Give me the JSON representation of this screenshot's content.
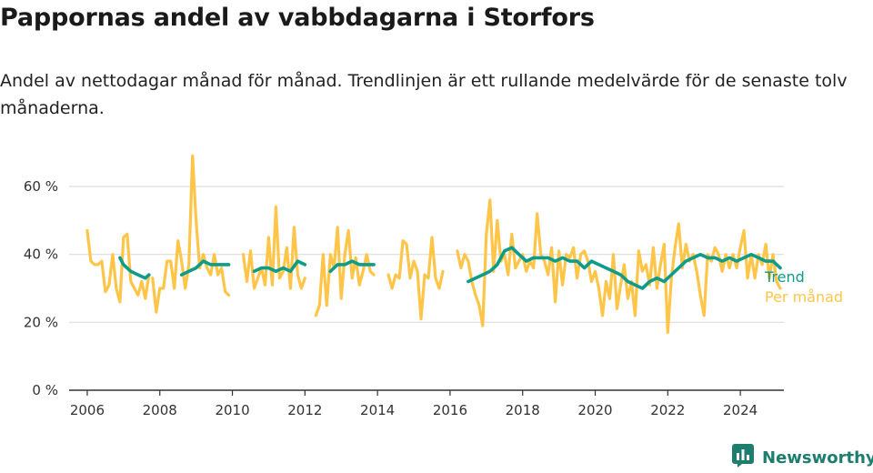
{
  "title": "Pappornas andel av vabbdagarna i Storfors",
  "subtitle": "Andel av nettodagar månad för månad. Trendlinjen är ett rullande medelvärde för de senaste tolv månaderna.",
  "brand": {
    "name": "Newsworthy",
    "icon": "bar-chart-speech-bubble-icon"
  },
  "colors": {
    "per_month": "#ffc549",
    "trend": "#0d9b8a",
    "grid": "#dddddd",
    "axis": "#333333"
  },
  "chart_data": {
    "type": "line",
    "xlim": [
      2005.5,
      2025.2
    ],
    "ylim": [
      0,
      60
    ],
    "x_ticks": [
      2006,
      2008,
      2010,
      2012,
      2014,
      2016,
      2018,
      2020,
      2022,
      2024
    ],
    "y_ticks": [
      0,
      20,
      40,
      60
    ],
    "y_tick_labels": [
      "0 %",
      "20 %",
      "40 %",
      "60 %"
    ],
    "grid": "horizontal",
    "legend": "right, at line ends",
    "series": [
      {
        "name": "Per månad",
        "segments": [
          [
            [
              2006.0,
              47
            ],
            [
              2006.1,
              38
            ],
            [
              2006.2,
              37
            ],
            [
              2006.3,
              37
            ],
            [
              2006.4,
              38
            ],
            [
              2006.5,
              29
            ],
            [
              2006.6,
              31
            ],
            [
              2006.7,
              40
            ],
            [
              2006.8,
              30
            ],
            [
              2006.9,
              26
            ],
            [
              2007.0,
              45
            ],
            [
              2007.1,
              46
            ],
            [
              2007.2,
              32
            ],
            [
              2007.3,
              30
            ],
            [
              2007.4,
              28
            ],
            [
              2007.5,
              32
            ],
            [
              2007.6,
              27
            ],
            [
              2007.7,
              34
            ]
          ],
          [
            [
              2007.8,
              33
            ],
            [
              2007.9,
              23
            ],
            [
              2008.0,
              30
            ],
            [
              2008.1,
              30
            ],
            [
              2008.2,
              38
            ],
            [
              2008.3,
              38
            ],
            [
              2008.4,
              30
            ],
            [
              2008.5,
              44
            ],
            [
              2008.6,
              38
            ],
            [
              2008.7,
              30
            ],
            [
              2008.8,
              37
            ],
            [
              2008.9,
              69
            ],
            [
              2009.0,
              50
            ],
            [
              2009.1,
              36
            ],
            [
              2009.2,
              40
            ],
            [
              2009.3,
              36
            ],
            [
              2009.4,
              34
            ],
            [
              2009.5,
              40
            ],
            [
              2009.6,
              34
            ],
            [
              2009.7,
              36
            ],
            [
              2009.8,
              29
            ],
            [
              2009.9,
              28
            ]
          ],
          [
            [
              2010.3,
              40
            ],
            [
              2010.4,
              32
            ],
            [
              2010.5,
              41
            ],
            [
              2010.6,
              30
            ],
            [
              2010.7,
              33
            ],
            [
              2010.8,
              36
            ],
            [
              2010.9,
              31
            ],
            [
              2011.0,
              45
            ],
            [
              2011.1,
              31
            ],
            [
              2011.2,
              54
            ],
            [
              2011.3,
              33
            ],
            [
              2011.4,
              35
            ],
            [
              2011.5,
              42
            ],
            [
              2011.6,
              30
            ],
            [
              2011.7,
              48
            ],
            [
              2011.8,
              34
            ],
            [
              2011.9,
              30
            ],
            [
              2012.0,
              33
            ]
          ],
          [
            [
              2012.3,
              22
            ],
            [
              2012.4,
              25
            ],
            [
              2012.5,
              40
            ],
            [
              2012.6,
              25
            ],
            [
              2012.7,
              40
            ],
            [
              2012.8,
              36
            ],
            [
              2012.9,
              48
            ],
            [
              2013.0,
              27
            ],
            [
              2013.1,
              40
            ],
            [
              2013.2,
              47
            ],
            [
              2013.3,
              33
            ],
            [
              2013.4,
              39
            ],
            [
              2013.5,
              31
            ],
            [
              2013.6,
              35
            ],
            [
              2013.7,
              40
            ],
            [
              2013.8,
              35
            ],
            [
              2013.9,
              34
            ]
          ],
          [
            [
              2014.3,
              34
            ],
            [
              2014.4,
              30
            ],
            [
              2014.5,
              34
            ],
            [
              2014.6,
              33
            ],
            [
              2014.7,
              44
            ],
            [
              2014.8,
              43
            ],
            [
              2014.9,
              33
            ],
            [
              2015.0,
              38
            ],
            [
              2015.1,
              35
            ],
            [
              2015.2,
              21
            ],
            [
              2015.3,
              34
            ],
            [
              2015.4,
              33
            ],
            [
              2015.5,
              45
            ],
            [
              2015.6,
              33
            ],
            [
              2015.7,
              30
            ],
            [
              2015.8,
              35
            ]
          ],
          [
            [
              2016.2,
              41
            ],
            [
              2016.3,
              36
            ],
            [
              2016.4,
              40
            ],
            [
              2016.5,
              38
            ],
            [
              2016.6,
              32
            ],
            [
              2016.7,
              28
            ],
            [
              2016.8,
              25
            ],
            [
              2016.9,
              19
            ],
            [
              2017.0,
              46
            ],
            [
              2017.1,
              56
            ],
            [
              2017.2,
              35
            ],
            [
              2017.3,
              50
            ],
            [
              2017.4,
              38
            ],
            [
              2017.5,
              40
            ],
            [
              2017.6,
              34
            ],
            [
              2017.7,
              46
            ],
            [
              2017.8,
              36
            ],
            [
              2017.9,
              38
            ],
            [
              2018.0,
              40
            ],
            [
              2018.1,
              35
            ],
            [
              2018.2,
              38
            ],
            [
              2018.3,
              36
            ],
            [
              2018.4,
              52
            ],
            [
              2018.5,
              40
            ],
            [
              2018.6,
              38
            ],
            [
              2018.7,
              34
            ],
            [
              2018.8,
              42
            ],
            [
              2018.9,
              26
            ],
            [
              2019.0,
              41
            ],
            [
              2019.1,
              31
            ],
            [
              2019.2,
              40
            ],
            [
              2019.3,
              39
            ],
            [
              2019.4,
              42
            ],
            [
              2019.5,
              33
            ],
            [
              2019.6,
              40
            ],
            [
              2019.7,
              41
            ],
            [
              2019.8,
              38
            ],
            [
              2019.9,
              32
            ],
            [
              2020.0,
              35
            ],
            [
              2020.1,
              30
            ],
            [
              2020.2,
              22
            ],
            [
              2020.3,
              32
            ],
            [
              2020.4,
              27
            ],
            [
              2020.5,
              40
            ],
            [
              2020.6,
              24
            ],
            [
              2020.7,
              31
            ],
            [
              2020.8,
              37
            ],
            [
              2020.9,
              27
            ],
            [
              2021.0,
              32
            ],
            [
              2021.1,
              22
            ],
            [
              2021.2,
              41
            ],
            [
              2021.3,
              35
            ],
            [
              2021.4,
              37
            ],
            [
              2021.5,
              31
            ],
            [
              2021.6,
              42
            ],
            [
              2021.7,
              30
            ],
            [
              2021.8,
              37
            ],
            [
              2021.9,
              43
            ],
            [
              2022.0,
              17
            ],
            [
              2022.1,
              33
            ],
            [
              2022.2,
              42
            ],
            [
              2022.3,
              49
            ],
            [
              2022.4,
              36
            ],
            [
              2022.5,
              43
            ],
            [
              2022.6,
              38
            ],
            [
              2022.7,
              40
            ],
            [
              2022.8,
              35
            ],
            [
              2022.9,
              28
            ],
            [
              2023.0,
              22
            ],
            [
              2023.1,
              40
            ],
            [
              2023.2,
              38
            ],
            [
              2023.3,
              42
            ],
            [
              2023.4,
              40
            ],
            [
              2023.5,
              35
            ],
            [
              2023.6,
              40
            ],
            [
              2023.7,
              36
            ],
            [
              2023.8,
              40
            ],
            [
              2023.9,
              36
            ],
            [
              2024.0,
              42
            ],
            [
              2024.1,
              47
            ],
            [
              2024.2,
              33
            ],
            [
              2024.3,
              40
            ],
            [
              2024.4,
              33
            ],
            [
              2024.5,
              40
            ],
            [
              2024.6,
              37
            ],
            [
              2024.7,
              43
            ],
            [
              2024.8,
              33
            ],
            [
              2024.9,
              40
            ],
            [
              2025.0,
              32
            ],
            [
              2025.1,
              30
            ]
          ]
        ]
      },
      {
        "name": "Trend",
        "segments": [
          [
            [
              2006.9,
              39
            ],
            [
              2007.0,
              37
            ],
            [
              2007.2,
              35
            ],
            [
              2007.4,
              34
            ],
            [
              2007.6,
              33
            ],
            [
              2007.7,
              34
            ]
          ],
          [
            [
              2008.6,
              34
            ],
            [
              2008.8,
              35
            ],
            [
              2009.0,
              36
            ],
            [
              2009.2,
              38
            ],
            [
              2009.4,
              37
            ],
            [
              2009.6,
              37
            ],
            [
              2009.8,
              37
            ],
            [
              2009.9,
              37
            ]
          ],
          [
            [
              2010.6,
              35
            ],
            [
              2010.8,
              36
            ],
            [
              2011.0,
              36
            ],
            [
              2011.2,
              35
            ],
            [
              2011.4,
              36
            ],
            [
              2011.6,
              35
            ],
            [
              2011.8,
              38
            ],
            [
              2012.0,
              37
            ]
          ],
          [
            [
              2012.7,
              35
            ],
            [
              2012.9,
              37
            ],
            [
              2013.1,
              37
            ],
            [
              2013.3,
              38
            ],
            [
              2013.5,
              37
            ],
            [
              2013.7,
              37
            ],
            [
              2013.9,
              37
            ]
          ],
          [
            [
              2016.5,
              32
            ],
            [
              2016.7,
              33
            ],
            [
              2016.9,
              34
            ],
            [
              2017.1,
              35
            ],
            [
              2017.3,
              37
            ],
            [
              2017.5,
              41
            ],
            [
              2017.7,
              42
            ],
            [
              2017.9,
              40
            ],
            [
              2018.1,
              38
            ],
            [
              2018.3,
              39
            ],
            [
              2018.5,
              39
            ],
            [
              2018.7,
              39
            ],
            [
              2018.9,
              38
            ],
            [
              2019.1,
              39
            ],
            [
              2019.3,
              38
            ],
            [
              2019.5,
              38
            ],
            [
              2019.7,
              36
            ],
            [
              2019.9,
              38
            ],
            [
              2020.1,
              37
            ],
            [
              2020.3,
              36
            ],
            [
              2020.5,
              35
            ],
            [
              2020.7,
              34
            ],
            [
              2020.9,
              32
            ],
            [
              2021.1,
              31
            ],
            [
              2021.3,
              30
            ],
            [
              2021.5,
              32
            ],
            [
              2021.7,
              33
            ],
            [
              2021.9,
              32
            ],
            [
              2022.1,
              34
            ],
            [
              2022.3,
              36
            ],
            [
              2022.5,
              38
            ],
            [
              2022.7,
              39
            ],
            [
              2022.9,
              40
            ],
            [
              2023.1,
              39
            ],
            [
              2023.3,
              39
            ],
            [
              2023.5,
              38
            ],
            [
              2023.7,
              39
            ],
            [
              2023.9,
              38
            ],
            [
              2024.1,
              39
            ],
            [
              2024.3,
              40
            ],
            [
              2024.5,
              39
            ],
            [
              2024.7,
              38
            ],
            [
              2024.9,
              38
            ],
            [
              2025.1,
              36
            ]
          ]
        ]
      }
    ]
  }
}
